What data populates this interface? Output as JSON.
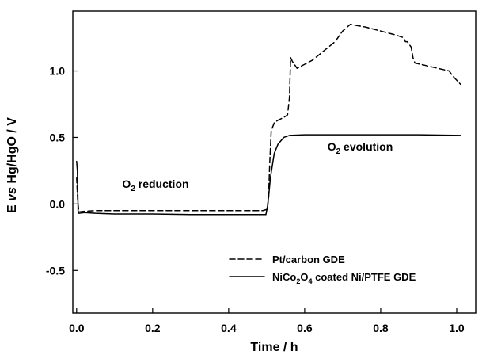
{
  "chart_data": {
    "type": "line",
    "title": "",
    "xlabel": "Time / h",
    "ylabel_parts": [
      "E ",
      "vs",
      " Hg/HgO / V"
    ],
    "xlim": [
      -0.01,
      1.05
    ],
    "ylim": [
      -0.82,
      1.45
    ],
    "x_ticks": [
      0.0,
      0.2,
      0.4,
      0.6,
      0.8,
      1.0
    ],
    "x_tick_labels": [
      "0.0",
      "0.2",
      "0.4",
      "0.6",
      "0.8",
      "1.0"
    ],
    "y_ticks": [
      -0.5,
      0.0,
      0.5,
      1.0
    ],
    "y_tick_labels": [
      "-0.5",
      "0.0",
      "0.5",
      "1.0"
    ],
    "grid": false,
    "legend_position": "bottom-right",
    "annotations": [
      {
        "id": "o2-reduction",
        "base": "O",
        "sub": "2",
        "rest": " reduction",
        "x": 0.12,
        "y": 0.12
      },
      {
        "id": "o2-evolution",
        "base": "O",
        "sub": "2",
        "rest": " evolution",
        "x": 0.66,
        "y": 0.4
      }
    ],
    "series": [
      {
        "name": "Pt/carbon GDE",
        "style": "dashed",
        "legend_parts": [
          {
            "t": "Pt/carbon GDE",
            "sub": false
          }
        ],
        "points": [
          [
            0.0,
            0.2
          ],
          [
            0.003,
            0.02
          ],
          [
            0.006,
            -0.06
          ],
          [
            0.02,
            -0.055
          ],
          [
            0.05,
            -0.05
          ],
          [
            0.1,
            -0.05
          ],
          [
            0.2,
            -0.05
          ],
          [
            0.3,
            -0.05
          ],
          [
            0.4,
            -0.05
          ],
          [
            0.49,
            -0.05
          ],
          [
            0.502,
            -0.04
          ],
          [
            0.505,
            0.05
          ],
          [
            0.508,
            0.3
          ],
          [
            0.512,
            0.55
          ],
          [
            0.52,
            0.61
          ],
          [
            0.53,
            0.63
          ],
          [
            0.545,
            0.65
          ],
          [
            0.555,
            0.67
          ],
          [
            0.56,
            0.8
          ],
          [
            0.563,
            1.1
          ],
          [
            0.568,
            1.07
          ],
          [
            0.58,
            1.02
          ],
          [
            0.6,
            1.05
          ],
          [
            0.62,
            1.08
          ],
          [
            0.65,
            1.15
          ],
          [
            0.68,
            1.22
          ],
          [
            0.7,
            1.3
          ],
          [
            0.72,
            1.35
          ],
          [
            0.74,
            1.34
          ],
          [
            0.76,
            1.33
          ],
          [
            0.8,
            1.3
          ],
          [
            0.84,
            1.27
          ],
          [
            0.86,
            1.25
          ],
          [
            0.865,
            1.22
          ],
          [
            0.87,
            1.22
          ],
          [
            0.88,
            1.18
          ],
          [
            0.885,
            1.1
          ],
          [
            0.89,
            1.06
          ],
          [
            0.92,
            1.04
          ],
          [
            0.95,
            1.02
          ],
          [
            0.98,
            1.0
          ],
          [
            0.99,
            0.96
          ],
          [
            1.0,
            0.93
          ],
          [
            1.01,
            0.9
          ]
        ]
      },
      {
        "name": "NiCo2O4 coated Ni/PTFE GDE",
        "style": "solid",
        "legend_parts": [
          {
            "t": "NiCo",
            "sub": false
          },
          {
            "t": "2",
            "sub": true
          },
          {
            "t": "O",
            "sub": false
          },
          {
            "t": "4",
            "sub": true
          },
          {
            "t": " coated Ni/PTFE GDE",
            "sub": false
          }
        ],
        "points": [
          [
            0.0,
            0.32
          ],
          [
            0.002,
            0.25
          ],
          [
            0.004,
            -0.06
          ],
          [
            0.006,
            -0.07
          ],
          [
            0.02,
            -0.065
          ],
          [
            0.05,
            -0.07
          ],
          [
            0.1,
            -0.075
          ],
          [
            0.2,
            -0.075
          ],
          [
            0.3,
            -0.08
          ],
          [
            0.4,
            -0.08
          ],
          [
            0.498,
            -0.08
          ],
          [
            0.502,
            -0.02
          ],
          [
            0.505,
            0.05
          ],
          [
            0.51,
            0.2
          ],
          [
            0.52,
            0.38
          ],
          [
            0.53,
            0.45
          ],
          [
            0.545,
            0.5
          ],
          [
            0.56,
            0.515
          ],
          [
            0.6,
            0.52
          ],
          [
            0.7,
            0.52
          ],
          [
            0.8,
            0.52
          ],
          [
            0.9,
            0.52
          ],
          [
            1.01,
            0.515
          ]
        ]
      }
    ]
  }
}
